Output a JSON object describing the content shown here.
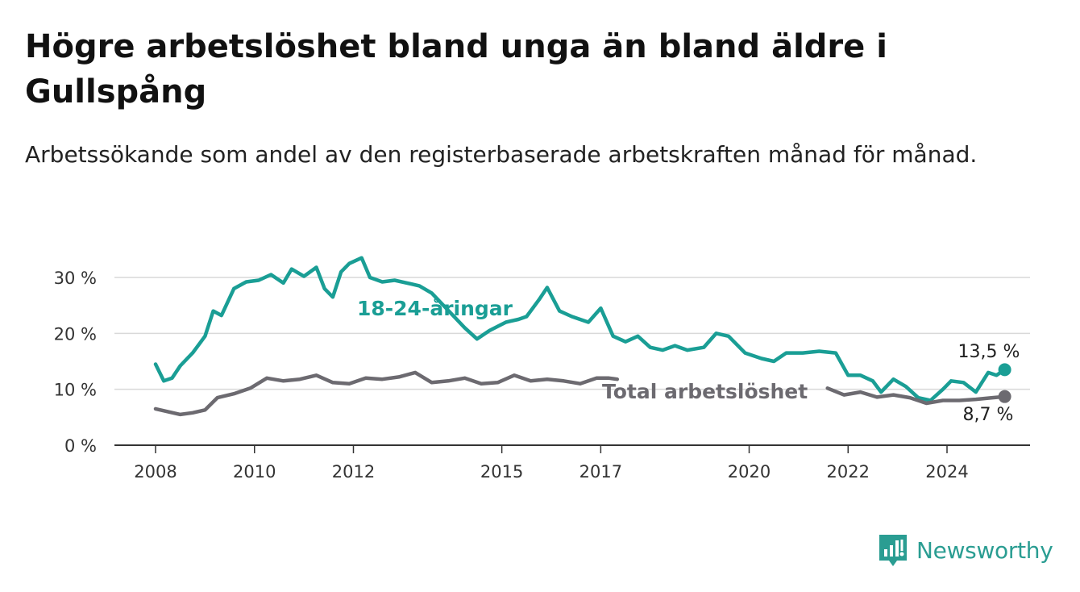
{
  "title": "Högre arbetslöshet bland unga än bland äldre i Gullspång",
  "subtitle": "Arbetssökande som andel av den registerbaserade arbetskraften månad för månad.",
  "brand": {
    "name": "Newsworthy",
    "icon": "newsworthy-logo-icon",
    "color": "#2a9d92"
  },
  "chart_data": {
    "type": "line",
    "x_ticks": [
      "2008",
      "2010",
      "2012",
      "2015",
      "2017",
      "2020",
      "2022",
      "2024"
    ],
    "y_ticks": [
      "0 %",
      "10 %",
      "20 %",
      "30 %"
    ],
    "ylim": [
      0,
      35
    ],
    "grid": true,
    "series": [
      {
        "name": "18-24-åringar",
        "color": "#1a9e95",
        "end_label": "13,5 %",
        "points": [
          [
            "2008-01",
            14.5
          ],
          [
            "2008-03",
            11.5
          ],
          [
            "2008-05",
            12.0
          ],
          [
            "2008-07",
            14.2
          ],
          [
            "2008-10",
            16.5
          ],
          [
            "2009-01",
            19.5
          ],
          [
            "2009-03",
            24.0
          ],
          [
            "2009-05",
            23.2
          ],
          [
            "2009-08",
            28.0
          ],
          [
            "2009-11",
            29.2
          ],
          [
            "2010-02",
            29.5
          ],
          [
            "2010-05",
            30.5
          ],
          [
            "2010-08",
            29.0
          ],
          [
            "2010-10",
            31.5
          ],
          [
            "2011-01",
            30.2
          ],
          [
            "2011-04",
            31.8
          ],
          [
            "2011-06",
            28.0
          ],
          [
            "2011-08",
            26.5
          ],
          [
            "2011-10",
            31.0
          ],
          [
            "2011-12",
            32.5
          ],
          [
            "2012-03",
            33.5
          ],
          [
            "2012-05",
            30.0
          ],
          [
            "2012-08",
            29.2
          ],
          [
            "2012-11",
            29.5
          ],
          [
            "2013-02",
            29.0
          ],
          [
            "2013-05",
            28.5
          ],
          [
            "2013-08",
            27.2
          ],
          [
            "2014-04",
            21.0
          ],
          [
            "2014-07",
            19.0
          ],
          [
            "2014-10",
            20.5
          ],
          [
            "2015-02",
            22.0
          ],
          [
            "2015-05",
            22.5
          ],
          [
            "2015-07",
            23.0
          ],
          [
            "2015-10",
            26.0
          ],
          [
            "2015-12",
            28.2
          ],
          [
            "2016-03",
            24.0
          ],
          [
            "2016-06",
            23.0
          ],
          [
            "2016-10",
            22.0
          ],
          [
            "2017-01",
            24.5
          ],
          [
            "2017-04",
            19.5
          ],
          [
            "2017-07",
            18.5
          ],
          [
            "2017-10",
            19.5
          ],
          [
            "2018-01",
            17.5
          ],
          [
            "2018-04",
            17.0
          ],
          [
            "2018-07",
            17.8
          ],
          [
            "2018-10",
            17.0
          ],
          [
            "2019-02",
            17.5
          ],
          [
            "2019-05",
            20.0
          ],
          [
            "2019-08",
            19.5
          ],
          [
            "2019-12",
            16.5
          ],
          [
            "2020-04",
            15.5
          ],
          [
            "2020-07",
            15.0
          ],
          [
            "2020-10",
            16.5
          ],
          [
            "2021-02",
            16.5
          ],
          [
            "2021-06",
            16.8
          ],
          [
            "2021-10",
            16.5
          ],
          [
            "2022-01",
            12.5
          ],
          [
            "2022-04",
            12.5
          ],
          [
            "2022-07",
            11.5
          ],
          [
            "2022-09",
            9.5
          ],
          [
            "2022-12",
            11.8
          ],
          [
            "2023-03",
            10.5
          ],
          [
            "2023-06",
            8.5
          ],
          [
            "2023-09",
            8.0
          ],
          [
            "2023-12",
            10.0
          ],
          [
            "2024-02",
            11.5
          ],
          [
            "2024-05",
            11.2
          ],
          [
            "2024-08",
            9.5
          ],
          [
            "2024-11",
            13.0
          ],
          [
            "2025-01",
            12.5
          ],
          [
            "2025-03",
            13.5
          ]
        ]
      },
      {
        "name": "Total arbetslöshet",
        "color": "#6c6a70",
        "end_label": "8,7 %",
        "points": [
          [
            "2008-01",
            6.5
          ],
          [
            "2008-04",
            6.0
          ],
          [
            "2008-07",
            5.5
          ],
          [
            "2008-10",
            5.8
          ],
          [
            "2009-01",
            6.3
          ],
          [
            "2009-04",
            8.5
          ],
          [
            "2009-08",
            9.2
          ],
          [
            "2009-12",
            10.2
          ],
          [
            "2010-04",
            12.0
          ],
          [
            "2010-08",
            11.5
          ],
          [
            "2010-12",
            11.8
          ],
          [
            "2011-04",
            12.5
          ],
          [
            "2011-08",
            11.2
          ],
          [
            "2011-12",
            11.0
          ],
          [
            "2012-04",
            12.0
          ],
          [
            "2012-08",
            11.8
          ],
          [
            "2012-12",
            12.2
          ],
          [
            "2013-04",
            13.0
          ],
          [
            "2013-08",
            11.2
          ],
          [
            "2013-12",
            11.5
          ],
          [
            "2014-04",
            12.0
          ],
          [
            "2014-08",
            11.0
          ],
          [
            "2014-12",
            11.2
          ],
          [
            "2015-04",
            12.5
          ],
          [
            "2015-08",
            11.5
          ],
          [
            "2015-12",
            11.8
          ],
          [
            "2016-04",
            11.5
          ],
          [
            "2016-08",
            11.0
          ],
          [
            "2016-12",
            12.0
          ],
          [
            "2017-03",
            12.0
          ],
          [
            "2017-05",
            11.8
          ],
          [
            "2021-08",
            10.2
          ],
          [
            "2021-12",
            9.0
          ],
          [
            "2022-04",
            9.5
          ],
          [
            "2022-08",
            8.6
          ],
          [
            "2022-12",
            9.0
          ],
          [
            "2023-04",
            8.5
          ],
          [
            "2023-08",
            7.5
          ],
          [
            "2023-12",
            8.0
          ],
          [
            "2024-04",
            8.0
          ],
          [
            "2024-08",
            8.2
          ],
          [
            "2024-12",
            8.5
          ],
          [
            "2025-03",
            8.7
          ]
        ]
      }
    ]
  }
}
